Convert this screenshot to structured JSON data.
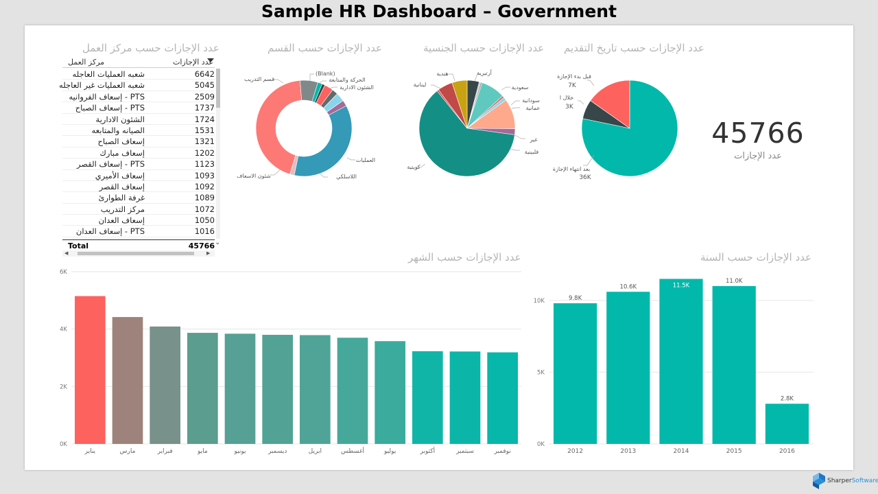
{
  "page_title": "Sample HR Dashboard – Government",
  "colors": {
    "teal": "#01b8aa",
    "dark": "#374649",
    "red": "#fd625e",
    "yellow": "#c9a213",
    "purple": "#8a4ea0",
    "title_gray": "#b4b4b4"
  },
  "table": {
    "title": "عدد الإجازات حسب مركز العمل",
    "col_name": "مركز العمل",
    "col_count": "عدد الإجازات",
    "rows": [
      {
        "name": "شعبه العمليات العاجله",
        "count": "6642"
      },
      {
        "name": "شعبه العمليات غير العاجله",
        "count": "5045"
      },
      {
        "name": "PTS - إسعاف الفروانيه",
        "count": "2509"
      },
      {
        "name": "PTS - إسعاف الصباح",
        "count": "1737"
      },
      {
        "name": "الشئون الادارية",
        "count": "1724"
      },
      {
        "name": "الصيانه والمتابعه",
        "count": "1531"
      },
      {
        "name": "إسعاف الصباح",
        "count": "1321"
      },
      {
        "name": "إسعاف مبارك",
        "count": "1202"
      },
      {
        "name": "PTS - إسعاف القصر",
        "count": "1123"
      },
      {
        "name": "إسعاف الأميري",
        "count": "1093"
      },
      {
        "name": "إسعاف القصر",
        "count": "1092"
      },
      {
        "name": "غرفة الطوارئ",
        "count": "1089"
      },
      {
        "name": "مركز التدريب",
        "count": "1072"
      },
      {
        "name": "إسعاف العدان",
        "count": "1050"
      },
      {
        "name": "PTS - إسعاف العدان",
        "count": "1016"
      }
    ],
    "total_label": "Total",
    "total_value": "45766"
  },
  "kpi": {
    "value": "45766",
    "label": "عدد الإجازات"
  },
  "logo": {
    "text_a": "Sharper",
    "text_b": "Software"
  },
  "chart_data": [
    {
      "type": "pie",
      "title": "عدد الإجازات حسب القسم",
      "donut": true,
      "slices": [
        {
          "label": "العمليات",
          "value": 36,
          "color": "#3599b8"
        },
        {
          "label": "اللاسلكي",
          "value": 1.5,
          "color": "#dfbfbf"
        },
        {
          "label": "شئون الاسعاف",
          "value": 44,
          "color": "#fd7976"
        },
        {
          "label": "قسم التدريب",
          "value": 6,
          "color": "#7f898a"
        },
        {
          "label": "",
          "value": 1.5,
          "color": "#01b8aa"
        },
        {
          "label": "(Blank)",
          "value": 1,
          "color": "#374649"
        },
        {
          "label": "",
          "value": 3,
          "color": "#fd625e"
        },
        {
          "label": "الحركة والمتابعة",
          "value": 2,
          "color": "#5f6b6d"
        },
        {
          "label": "الشئون الادارية",
          "value": 3,
          "color": "#8ad4eb"
        },
        {
          "label": "",
          "value": 2,
          "color": "#a66999"
        }
      ],
      "labels": [
        "(Blank)",
        "الحركة والمتابعة",
        "الشئون الادارية",
        "قسم التدريب",
        "العمليات",
        "اللاسلكي",
        "شئون الاسعاف"
      ]
    },
    {
      "type": "pie",
      "title": "عدد الإجازات حسب الجنسية",
      "slices": [
        {
          "label": "أرتيرية",
          "value": 4,
          "color": "#374649"
        },
        {
          "label": "",
          "value": 0.5,
          "color": "#c8c8c8"
        },
        {
          "label": "",
          "value": 0.5,
          "color": "#999999"
        },
        {
          "label": "سعودية",
          "value": 8,
          "color": "#5fc9c0"
        },
        {
          "label": "سودانية",
          "value": 0.7,
          "color": "#d66c68"
        },
        {
          "label": "عمانية",
          "value": 1,
          "color": "#8ad4eb"
        },
        {
          "label": "غير",
          "value": 10,
          "color": "#fea98c"
        },
        {
          "label": "فلبينية",
          "value": 2,
          "color": "#a66999"
        },
        {
          "label": "كويتية",
          "value": 61,
          "color": "#138f85"
        },
        {
          "label": "لبنانية",
          "value": 0.6,
          "color": "#e6484a"
        },
        {
          "label": "",
          "value": 5,
          "color": "#c14947"
        },
        {
          "label": "هندية",
          "value": 5,
          "color": "#c9a213"
        }
      ],
      "labels": [
        "أرتيرية",
        "هندية",
        "لبنانية",
        "سعودية",
        "سودانية",
        "عمانية",
        "غير",
        "فلبينية",
        "كويتية"
      ]
    },
    {
      "type": "pie",
      "title": "عدد الإجازات حسب تاريخ التقديم",
      "slices": [
        {
          "label": "بعد انتهاء الإجازة",
          "display": "36K",
          "value": 36,
          "color": "#01b8aa"
        },
        {
          "label": "خلال ا",
          "display": "3K",
          "value": 3,
          "color": "#374649"
        },
        {
          "label": "قبل بدء الإجازة",
          "display": "7K",
          "value": 7,
          "color": "#fd625e"
        }
      ]
    },
    {
      "type": "bar",
      "title": "عدد الإجازات حسب الشهر",
      "categories": [
        "يناير",
        "مارس",
        "فبراير",
        "مايو",
        "يونيو",
        "ديسمبر",
        "ابريل",
        "أغسطس",
        "يوليو",
        "أكتوبر",
        "سبتمبر",
        "نوفمبر"
      ],
      "values": [
        5150,
        4420,
        4090,
        3870,
        3840,
        3800,
        3790,
        3700,
        3580,
        3230,
        3220,
        3190
      ],
      "colors": [
        "#fd625e",
        "#9d837b",
        "#78918a",
        "#5b9d8f",
        "#56a095",
        "#52a296",
        "#4fa497",
        "#46a89a",
        "#3aab9c",
        "#11b5a8",
        "#0bb6a9",
        "#06b7aa"
      ],
      "ylim": [
        0,
        6000
      ],
      "yticks": [
        "0K",
        "2K",
        "4K",
        "6K"
      ],
      "ytick_values": [
        0,
        2000,
        4000,
        6000
      ]
    },
    {
      "type": "bar",
      "title": "عدد الإجازات حسب السنة",
      "categories": [
        "2012",
        "2013",
        "2014",
        "2015",
        "2016"
      ],
      "values": [
        9800,
        10600,
        11500,
        11000,
        2800
      ],
      "data_labels": [
        "9.8K",
        "10.6K",
        "11.5K",
        "11.0K",
        "2.8K"
      ],
      "color": "#01b8aa",
      "ylim": [
        0,
        12000
      ],
      "yticks": [
        "0K",
        "5K",
        "10K"
      ],
      "ytick_values": [
        0,
        5000,
        10000
      ]
    }
  ]
}
